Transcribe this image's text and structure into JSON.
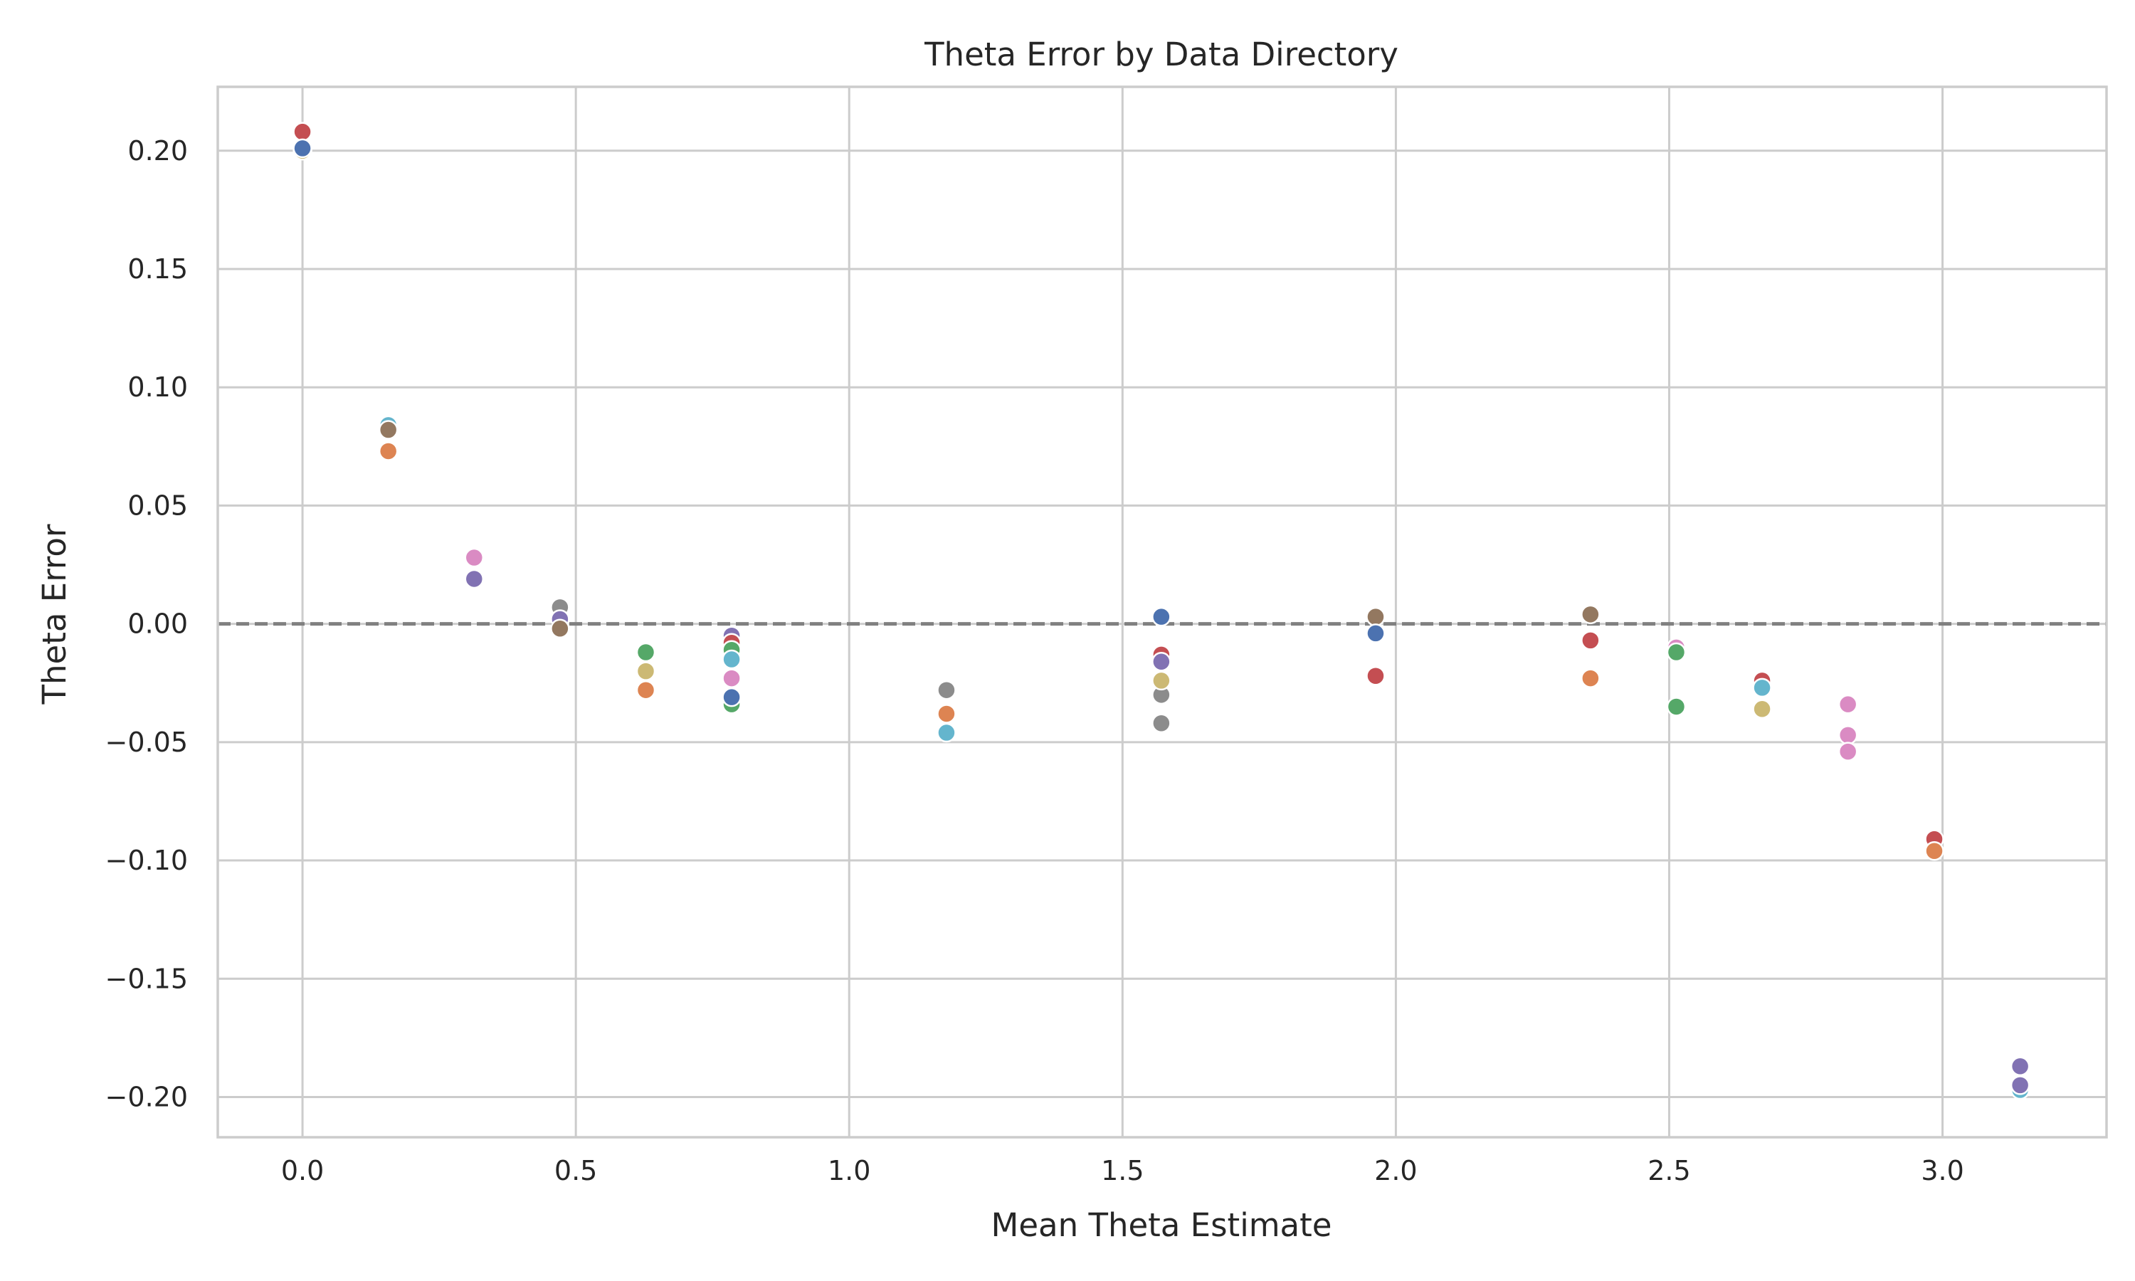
{
  "chart_data": {
    "type": "scatter",
    "title": "Theta Error by Data Directory",
    "xlabel": "Mean Theta Estimate",
    "ylabel": "Theta Error",
    "xlim": [
      -0.155,
      3.3
    ],
    "ylim": [
      -0.217,
      0.227
    ],
    "x_ticks": [
      0.0,
      0.5,
      1.0,
      1.5,
      2.0,
      2.5,
      3.0
    ],
    "y_ticks": [
      0.2,
      0.15,
      0.1,
      0.05,
      0.0,
      -0.05,
      -0.1,
      -0.15,
      -0.2
    ],
    "x_tick_labels": [
      "0.0",
      "0.5",
      "1.0",
      "1.5",
      "2.0",
      "2.5",
      "3.0"
    ],
    "y_tick_labels": [
      "0.20",
      "0.15",
      "0.10",
      "0.05",
      "0.00",
      "−0.05",
      "−0.10",
      "−0.15",
      "−0.20"
    ],
    "grid": true,
    "legend": "none",
    "reference_line": {
      "y": 0.0,
      "style": "dashed",
      "color": "#808080"
    },
    "colors": {
      "blue": "#4c72b0",
      "orange": "#dd8452",
      "green": "#55a868",
      "red": "#c44e52",
      "purple": "#8172b3",
      "brown": "#937860",
      "pink": "#da8bc3",
      "gray": "#8c8c8c",
      "olive": "#ccb974",
      "cyan": "#64b5cd"
    },
    "points": [
      {
        "x": 0.0,
        "y": 0.2,
        "color": "olive"
      },
      {
        "x": 0.0,
        "y": 0.208,
        "color": "red"
      },
      {
        "x": 0.0,
        "y": 0.201,
        "color": "blue"
      },
      {
        "x": 0.157,
        "y": 0.084,
        "color": "cyan"
      },
      {
        "x": 0.157,
        "y": 0.082,
        "color": "brown"
      },
      {
        "x": 0.157,
        "y": 0.073,
        "color": "orange"
      },
      {
        "x": 0.314,
        "y": 0.028,
        "color": "pink"
      },
      {
        "x": 0.314,
        "y": 0.019,
        "color": "purple"
      },
      {
        "x": 0.471,
        "y": 0.007,
        "color": "gray"
      },
      {
        "x": 0.471,
        "y": 0.002,
        "color": "purple"
      },
      {
        "x": 0.471,
        "y": -0.002,
        "color": "brown"
      },
      {
        "x": 0.628,
        "y": -0.012,
        "color": "green"
      },
      {
        "x": 0.628,
        "y": -0.02,
        "color": "olive"
      },
      {
        "x": 0.628,
        "y": -0.028,
        "color": "orange"
      },
      {
        "x": 0.785,
        "y": -0.005,
        "color": "purple"
      },
      {
        "x": 0.785,
        "y": -0.008,
        "color": "red"
      },
      {
        "x": 0.785,
        "y": -0.011,
        "color": "green"
      },
      {
        "x": 0.785,
        "y": -0.015,
        "color": "cyan"
      },
      {
        "x": 0.785,
        "y": -0.023,
        "color": "pink"
      },
      {
        "x": 0.785,
        "y": -0.034,
        "color": "green"
      },
      {
        "x": 0.785,
        "y": -0.031,
        "color": "blue"
      },
      {
        "x": 1.178,
        "y": -0.028,
        "color": "gray"
      },
      {
        "x": 1.178,
        "y": -0.038,
        "color": "orange"
      },
      {
        "x": 1.178,
        "y": -0.046,
        "color": "cyan"
      },
      {
        "x": 1.571,
        "y": 0.003,
        "color": "blue"
      },
      {
        "x": 1.571,
        "y": -0.013,
        "color": "red"
      },
      {
        "x": 1.571,
        "y": -0.016,
        "color": "purple"
      },
      {
        "x": 1.571,
        "y": -0.03,
        "color": "gray"
      },
      {
        "x": 1.571,
        "y": -0.024,
        "color": "olive"
      },
      {
        "x": 1.571,
        "y": -0.042,
        "color": "gray"
      },
      {
        "x": 1.963,
        "y": 0.003,
        "color": "brown"
      },
      {
        "x": 1.963,
        "y": -0.004,
        "color": "blue"
      },
      {
        "x": 1.963,
        "y": -0.022,
        "color": "red"
      },
      {
        "x": 2.356,
        "y": 0.004,
        "color": "brown"
      },
      {
        "x": 2.356,
        "y": -0.007,
        "color": "red"
      },
      {
        "x": 2.356,
        "y": -0.023,
        "color": "orange"
      },
      {
        "x": 2.513,
        "y": -0.01,
        "color": "pink"
      },
      {
        "x": 2.513,
        "y": -0.012,
        "color": "green"
      },
      {
        "x": 2.513,
        "y": -0.035,
        "color": "green"
      },
      {
        "x": 2.67,
        "y": -0.024,
        "color": "red"
      },
      {
        "x": 2.67,
        "y": -0.027,
        "color": "cyan"
      },
      {
        "x": 2.67,
        "y": -0.036,
        "color": "olive"
      },
      {
        "x": 2.827,
        "y": -0.034,
        "color": "pink"
      },
      {
        "x": 2.827,
        "y": -0.047,
        "color": "pink"
      },
      {
        "x": 2.827,
        "y": -0.054,
        "color": "pink"
      },
      {
        "x": 2.985,
        "y": -0.091,
        "color": "red"
      },
      {
        "x": 2.985,
        "y": -0.096,
        "color": "orange"
      },
      {
        "x": 3.142,
        "y": -0.187,
        "color": "purple"
      },
      {
        "x": 3.142,
        "y": -0.197,
        "color": "cyan"
      },
      {
        "x": 3.142,
        "y": -0.195,
        "color": "purple"
      }
    ]
  }
}
